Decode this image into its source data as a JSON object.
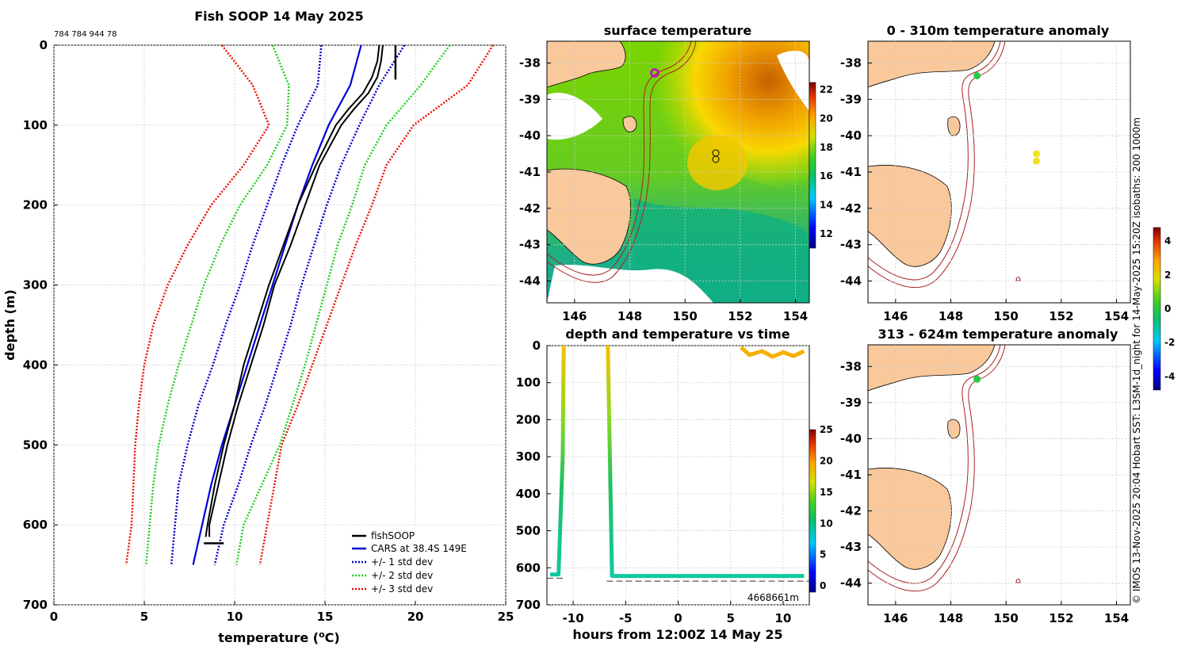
{
  "colors": {
    "profile": "#000000",
    "cars": "#0000dd",
    "sd1": "#0000cc",
    "sd2": "#22cc22",
    "sd3": "#ee1100",
    "land": "#f9c89b",
    "isobath": "#aa2222",
    "grid": "#cccccc"
  },
  "chart_data": [
    {
      "id": "profile",
      "type": "line",
      "title": "Fish SOOP 14 May 2025",
      "subtitle": "784 784 944 78",
      "xlabel": "temperature (°C)",
      "xlabel_main": "temperature (",
      "xlabel_sup": "o",
      "xlabel_end": "C)",
      "ylabel": "depth (m)",
      "xlim": [
        0,
        25
      ],
      "ylim": [
        0,
        700
      ],
      "xticks": [
        0,
        5,
        10,
        15,
        20,
        25
      ],
      "yticks": [
        0,
        100,
        200,
        300,
        400,
        500,
        600,
        700
      ],
      "legend": [
        "fishSOOP",
        "CARS at 38.4S 149E",
        "+/- 1 std dev",
        "+/- 2 std dev",
        "+/- 3 std dev"
      ],
      "legend_position": "bottom-right",
      "depth_axis": [
        0,
        50,
        100,
        150,
        200,
        250,
        300,
        350,
        400,
        450,
        500,
        550,
        600,
        650
      ],
      "cars_mean": [
        17.0,
        16.4,
        15.2,
        14.3,
        13.5,
        12.8,
        12.1,
        11.4,
        10.7,
        10.0,
        9.3,
        8.7,
        8.2,
        7.7
      ],
      "sd1_low": [
        14.8,
        14.6,
        13.5,
        12.6,
        11.8,
        11.0,
        10.3,
        9.5,
        8.8,
        8.0,
        7.4,
        6.9,
        6.7,
        6.5
      ],
      "sd1_high": [
        19.4,
        18.0,
        16.9,
        15.9,
        15.1,
        14.4,
        13.7,
        13.1,
        12.4,
        11.7,
        10.9,
        10.2,
        9.4,
        8.9
      ],
      "sd2_low": [
        12.1,
        13.0,
        12.9,
        11.8,
        10.3,
        9.2,
        8.3,
        7.6,
        6.9,
        6.3,
        5.8,
        5.5,
        5.3,
        5.1
      ],
      "sd2_high": [
        21.9,
        20.3,
        18.4,
        17.2,
        16.5,
        15.7,
        15.1,
        14.5,
        13.9,
        13.2,
        12.5,
        11.5,
        10.5,
        10.1
      ],
      "sd3_low": [
        9.3,
        11.0,
        11.9,
        10.5,
        8.7,
        7.4,
        6.3,
        5.5,
        5.0,
        4.7,
        4.5,
        4.4,
        4.3,
        4.0
      ],
      "sd3_high": [
        24.3,
        22.9,
        19.9,
        18.4,
        17.6,
        16.7,
        15.9,
        15.1,
        14.3,
        13.5,
        12.6,
        12.2,
        11.8,
        11.4
      ],
      "fish_depth": [
        0,
        20,
        40,
        60,
        80,
        100,
        150,
        200,
        250,
        300,
        350,
        400,
        450,
        500,
        550,
        600,
        615
      ],
      "fish_temp_a": [
        18.0,
        17.9,
        17.6,
        17.1,
        16.3,
        15.6,
        14.5,
        13.5,
        12.7,
        11.9,
        11.2,
        10.5,
        10.0,
        9.4,
        8.9,
        8.5,
        8.4
      ],
      "fish_temp_b": [
        18.2,
        18.1,
        17.9,
        17.4,
        16.6,
        15.9,
        14.7,
        13.9,
        13.1,
        12.2,
        11.6,
        10.9,
        10.2,
        9.6,
        9.1,
        8.6,
        8.6
      ],
      "fish_bottom_depth": 623,
      "fish_bottom_span": [
        8.3,
        9.4
      ]
    },
    {
      "id": "sst",
      "type": "heatmap",
      "title": "surface temperature",
      "xlim": [
        145,
        154.5
      ],
      "ylim": [
        -44.6,
        -37.4
      ],
      "xticks": [
        146,
        148,
        150,
        152,
        154
      ],
      "yticks": [
        -38,
        -39,
        -40,
        -41,
        -42,
        -43,
        -44
      ],
      "colorbar_ticks": [
        12,
        14,
        16,
        18,
        20,
        22
      ],
      "colorbar_range": [
        11,
        22.5
      ],
      "markers": [
        {
          "lon": 149.0,
          "lat": -38.35,
          "color": "#cc00cc"
        },
        {
          "lon": 151.1,
          "lat": -40.5
        },
        {
          "lon": 151.1,
          "lat": -40.68
        }
      ]
    },
    {
      "id": "timeseries",
      "type": "line",
      "title": "depth and temperature vs time",
      "xlabel": "hours from 12:00Z 14 May 25",
      "xlim": [
        -12.5,
        12.5
      ],
      "ylim": [
        0,
        700
      ],
      "xticks": [
        -10,
        -5,
        0,
        5,
        10
      ],
      "yticks": [
        0,
        100,
        200,
        300,
        400,
        500,
        600,
        700
      ],
      "colorbar_ticks": [
        0,
        5,
        10,
        15,
        20,
        25
      ],
      "colorbar_range": [
        -1,
        25
      ],
      "annotation": "4668661m",
      "seabed_depths": [
        628,
        636
      ],
      "casts": [
        {
          "hours": [
            -12.2,
            -11.4,
            -11.0,
            -10.9
          ],
          "depths": [
            618,
            618,
            300,
            0
          ]
        },
        {
          "hours": [
            -6.7,
            -6.5,
            -6.3,
            12.0
          ],
          "depths": [
            0,
            300,
            622,
            622
          ]
        }
      ],
      "surface_trace": {
        "hours": [
          6.0,
          6.8,
          8.0,
          9.0,
          10.0,
          11.0,
          12.0
        ],
        "depths": [
          5,
          25,
          15,
          30,
          18,
          28,
          15
        ]
      }
    },
    {
      "id": "anom1",
      "type": "scatter",
      "title": "0 - 310m temperature anomaly",
      "xlim": [
        145,
        154.5
      ],
      "ylim": [
        -44.6,
        -37.4
      ],
      "xticks": [
        146,
        148,
        150,
        152,
        154
      ],
      "yticks": [
        -38,
        -39,
        -40,
        -41,
        -42,
        -43,
        -44
      ],
      "points": [
        {
          "lon": 148.95,
          "lat": -38.35,
          "anomaly": 0.0
        },
        {
          "lon": 151.1,
          "lat": -40.5,
          "anomaly": 2.0
        },
        {
          "lon": 151.1,
          "lat": -40.7,
          "anomaly": 2.0
        }
      ]
    },
    {
      "id": "anom2",
      "type": "scatter",
      "title": "313 - 624m temperature anomaly",
      "xlim": [
        145,
        154.5
      ],
      "ylim": [
        -44.6,
        -37.4
      ],
      "xticks": [
        146,
        148,
        150,
        152,
        154
      ],
      "yticks": [
        -38,
        -39,
        -40,
        -41,
        -42,
        -43,
        -44
      ],
      "points": [
        {
          "lon": 148.95,
          "lat": -38.35,
          "anomaly": 0.0
        }
      ],
      "colorbar_ticks": [
        -4,
        -2,
        0,
        2,
        4
      ],
      "colorbar_range": [
        -4.8,
        4.8
      ]
    }
  ],
  "side_note": "© IMOS 13-Nov-2025 20:04 Hobart SST: L3SM-1d_night for 14-May-2025 15:20Z isobaths: 200  1000m"
}
